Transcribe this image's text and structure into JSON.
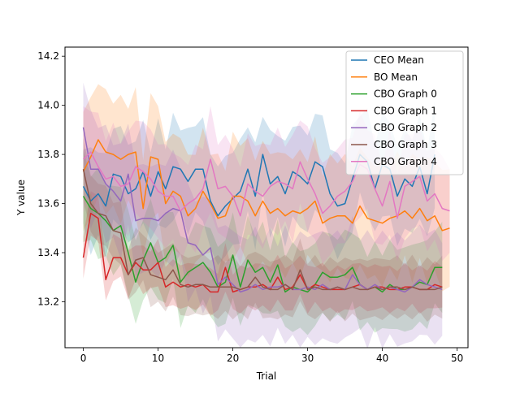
{
  "chart_data": {
    "type": "line",
    "title": "",
    "xlabel": "Trial",
    "ylabel": "Y value",
    "xlim": [
      -2.45,
      51.45
    ],
    "ylim": [
      13.013,
      14.237
    ],
    "xticks": [
      0,
      10,
      20,
      30,
      40,
      50
    ],
    "yticks": [
      13.2,
      13.4,
      13.6,
      13.8,
      14.0,
      14.2
    ],
    "xtick_labels": [
      "0",
      "10",
      "20",
      "30",
      "40",
      "50"
    ],
    "ytick_labels": [
      "13.2",
      "13.4",
      "13.6",
      "13.8",
      "14.0",
      "14.2"
    ],
    "grid": false,
    "legend_position": "top-right",
    "series": [
      {
        "name": "CEO Mean",
        "color": "#1f77b4",
        "band_halfwidth": 0.2,
        "values": [
          13.67,
          13.61,
          13.64,
          13.59,
          13.72,
          13.71,
          13.64,
          13.66,
          13.73,
          13.63,
          13.73,
          13.66,
          13.75,
          13.74,
          13.69,
          13.74,
          13.74,
          13.61,
          13.55,
          13.59,
          13.62,
          13.65,
          13.74,
          13.63,
          13.8,
          13.68,
          13.71,
          13.64,
          13.73,
          13.71,
          13.68,
          13.77,
          13.75,
          13.64,
          13.59,
          13.6,
          13.7,
          13.8,
          13.77,
          13.66,
          13.76,
          13.74,
          13.63,
          13.7,
          13.67,
          13.75,
          13.64,
          13.8
        ]
      },
      {
        "name": "BO Mean",
        "color": "#ff7f0e",
        "band_halfwidth": 0.24,
        "values": [
          13.73,
          13.79,
          13.86,
          13.81,
          13.8,
          13.78,
          13.8,
          13.81,
          13.58,
          13.79,
          13.78,
          13.6,
          13.65,
          13.63,
          13.55,
          13.58,
          13.65,
          13.6,
          13.54,
          13.55,
          13.63,
          13.63,
          13.61,
          13.55,
          13.61,
          13.56,
          13.58,
          13.55,
          13.57,
          13.56,
          13.58,
          13.61,
          13.52,
          13.54,
          13.55,
          13.55,
          13.52,
          13.59,
          13.54,
          13.53,
          13.52,
          13.54,
          13.55,
          13.57,
          13.54,
          13.58,
          13.53,
          13.55,
          13.49,
          13.5
        ]
      },
      {
        "name": "CBO Graph 0",
        "color": "#2ca02c",
        "band_halfwidth": 0.17,
        "values": [
          13.63,
          13.58,
          13.56,
          13.53,
          13.49,
          13.51,
          13.4,
          13.28,
          13.37,
          13.44,
          13.36,
          13.38,
          13.43,
          13.28,
          13.32,
          13.34,
          13.36,
          13.32,
          13.26,
          13.28,
          13.39,
          13.26,
          13.37,
          13.32,
          13.34,
          13.28,
          13.35,
          13.24,
          13.26,
          13.25,
          13.24,
          13.27,
          13.32,
          13.3,
          13.3,
          13.31,
          13.34,
          13.27,
          13.25,
          13.26,
          13.24,
          13.27,
          13.25,
          13.25,
          13.26,
          13.28,
          13.27,
          13.34,
          13.34
        ]
      },
      {
        "name": "CBO Graph 1",
        "color": "#d62728",
        "band_halfwidth": 0.09,
        "values": [
          13.38,
          13.56,
          13.54,
          13.29,
          13.38,
          13.38,
          13.31,
          13.36,
          13.33,
          13.33,
          13.36,
          13.26,
          13.28,
          13.26,
          13.27,
          13.26,
          13.27,
          13.24,
          13.24,
          13.34,
          13.24,
          13.25,
          13.26,
          13.26,
          13.27,
          13.25,
          13.3,
          13.25,
          13.26,
          13.31,
          13.25,
          13.27,
          13.26,
          13.25,
          13.25,
          13.25,
          13.26,
          13.27,
          13.25,
          13.26,
          13.26,
          13.25,
          13.25,
          13.26,
          13.26,
          13.25,
          13.25,
          13.27,
          13.26
        ]
      },
      {
        "name": "CBO Graph 2",
        "color": "#9467bd",
        "band_halfwidth": 0.22,
        "values": [
          13.91,
          13.74,
          13.74,
          13.68,
          13.65,
          13.61,
          13.72,
          13.53,
          13.54,
          13.54,
          13.53,
          13.56,
          13.58,
          13.57,
          13.44,
          13.43,
          13.39,
          13.42,
          13.27,
          13.3,
          13.27,
          13.24,
          13.25,
          13.27,
          13.25,
          13.26,
          13.26,
          13.27,
          13.25,
          13.25,
          13.26,
          13.25,
          13.27,
          13.25,
          13.26,
          13.25,
          13.31,
          13.27,
          13.25,
          13.27,
          13.25,
          13.26,
          13.25,
          13.24,
          13.26,
          13.29,
          13.27,
          13.26,
          13.25
        ]
      },
      {
        "name": "CBO Graph 3",
        "color": "#8c564b",
        "band_halfwidth": 0.12,
        "values": [
          13.74,
          13.6,
          13.56,
          13.55,
          13.49,
          13.48,
          13.31,
          13.37,
          13.38,
          13.31,
          13.3,
          13.29,
          13.33,
          13.27,
          13.26,
          13.27,
          13.27,
          13.26,
          13.26,
          13.26,
          13.26,
          13.25,
          13.26,
          13.3,
          13.26,
          13.25,
          13.25,
          13.27,
          13.25,
          13.33,
          13.25,
          13.26,
          13.25,
          13.25,
          13.26,
          13.25,
          13.26,
          13.25,
          13.25,
          13.26,
          13.25,
          13.26,
          13.26,
          13.25,
          13.26,
          13.25,
          13.25,
          13.25,
          13.26
        ]
      },
      {
        "name": "CBO Graph 4",
        "color": "#e377c2",
        "band_halfwidth": 0.2,
        "values": [
          13.78,
          13.81,
          13.75,
          13.7,
          13.71,
          13.67,
          13.68,
          13.75,
          13.73,
          13.7,
          13.65,
          13.63,
          13.63,
          13.57,
          13.6,
          13.62,
          13.66,
          13.78,
          13.66,
          13.67,
          13.63,
          13.55,
          13.68,
          13.65,
          13.63,
          13.67,
          13.69,
          13.68,
          13.66,
          13.77,
          13.7,
          13.64,
          13.56,
          13.59,
          13.63,
          13.65,
          13.69,
          13.76,
          13.74,
          13.66,
          13.59,
          13.69,
          13.54,
          13.67,
          13.69,
          13.71,
          13.61,
          13.64,
          13.58,
          13.57
        ]
      }
    ]
  }
}
